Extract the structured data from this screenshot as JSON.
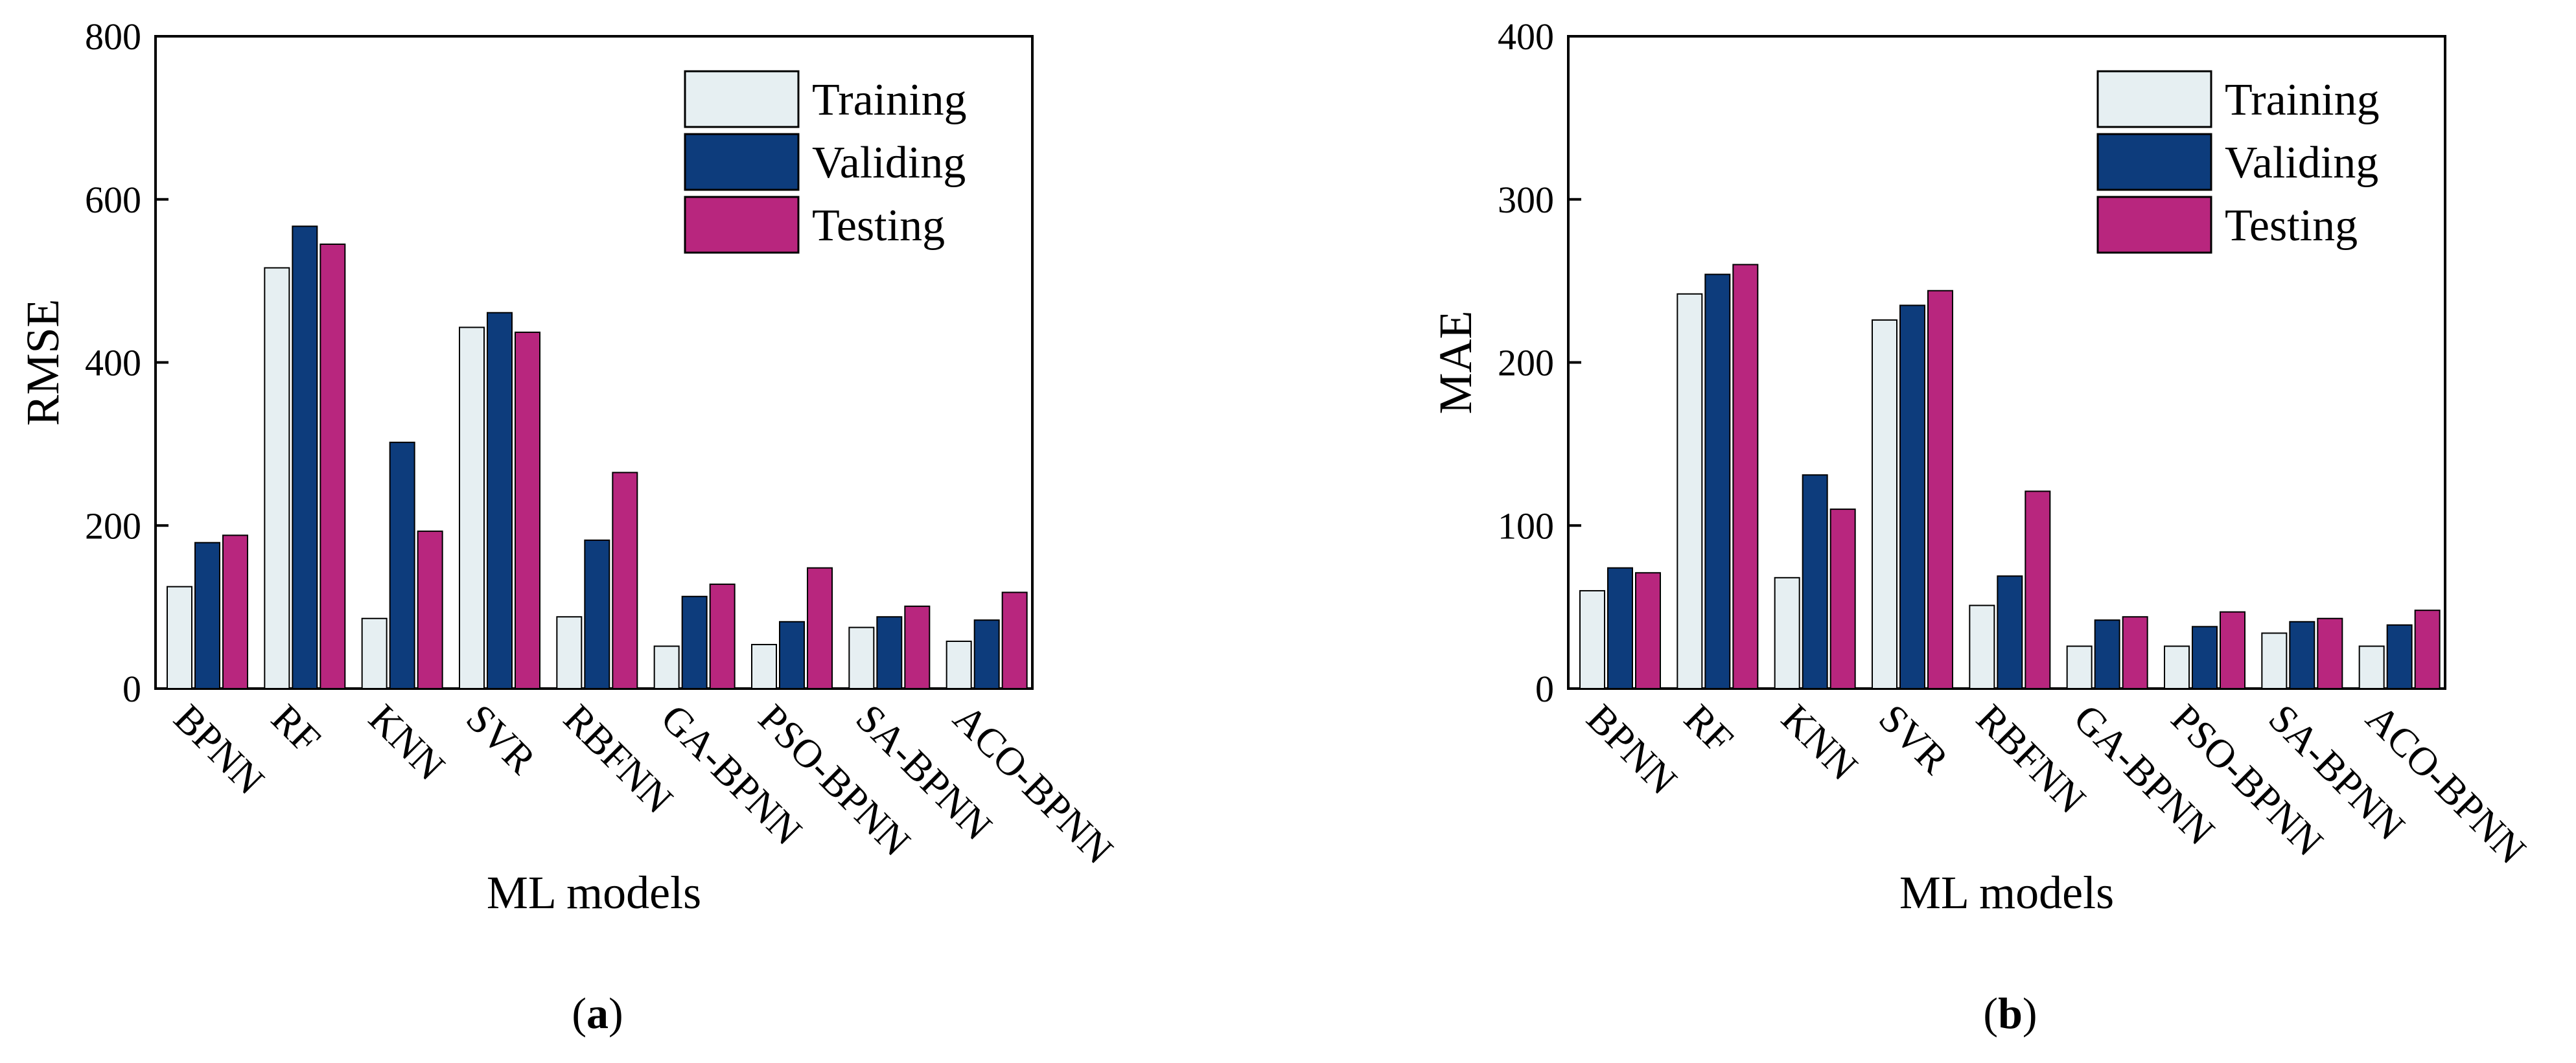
{
  "figure": {
    "panel_labels": [
      {
        "open": "(",
        "letter": "a",
        "close": ")"
      },
      {
        "open": "(",
        "letter": "b",
        "close": ")"
      }
    ]
  },
  "colors": {
    "training": "#e6eff2",
    "validing": "#0d3c7c",
    "testing": "#b8267e",
    "stroke": "#000000"
  },
  "chart_data": [
    {
      "type": "bar",
      "title": "",
      "xlabel": "ML models",
      "ylabel": "RMSE",
      "ylim": [
        0,
        800
      ],
      "yticks": [
        0,
        200,
        400,
        600,
        800
      ],
      "categories": [
        "BPNN",
        "RF",
        "KNN",
        "SVR",
        "RBFNN",
        "GA-BPNN",
        "PSO-BPNN",
        "SA-BPNN",
        "ACO-BPNN"
      ],
      "legend_position": "top-right",
      "series": [
        {
          "name": "Training",
          "values": [
            125,
            516,
            86,
            443,
            88,
            52,
            54,
            75,
            58
          ]
        },
        {
          "name": "Validing",
          "values": [
            179,
            567,
            302,
            461,
            182,
            113,
            82,
            88,
            84
          ]
        },
        {
          "name": "Testing",
          "values": [
            188,
            545,
            193,
            437,
            265,
            128,
            148,
            101,
            118
          ]
        }
      ]
    },
    {
      "type": "bar",
      "title": "",
      "xlabel": "ML models",
      "ylabel": "MAE",
      "ylim": [
        0,
        400
      ],
      "yticks": [
        0,
        100,
        200,
        300,
        400
      ],
      "categories": [
        "BPNN",
        "RF",
        "KNN",
        "SVR",
        "RBFNN",
        "GA-BPNN",
        "PSO-BPNN",
        "SA-BPNN",
        "ACO-BPNN"
      ],
      "legend_position": "top-right",
      "series": [
        {
          "name": "Training",
          "values": [
            60,
            242,
            68,
            226,
            51,
            26,
            26,
            34,
            26
          ]
        },
        {
          "name": "Validing",
          "values": [
            74,
            254,
            131,
            235,
            69,
            42,
            38,
            41,
            39
          ]
        },
        {
          "name": "Testing",
          "values": [
            71,
            260,
            110,
            244,
            121,
            44,
            47,
            43,
            48
          ]
        }
      ]
    }
  ]
}
